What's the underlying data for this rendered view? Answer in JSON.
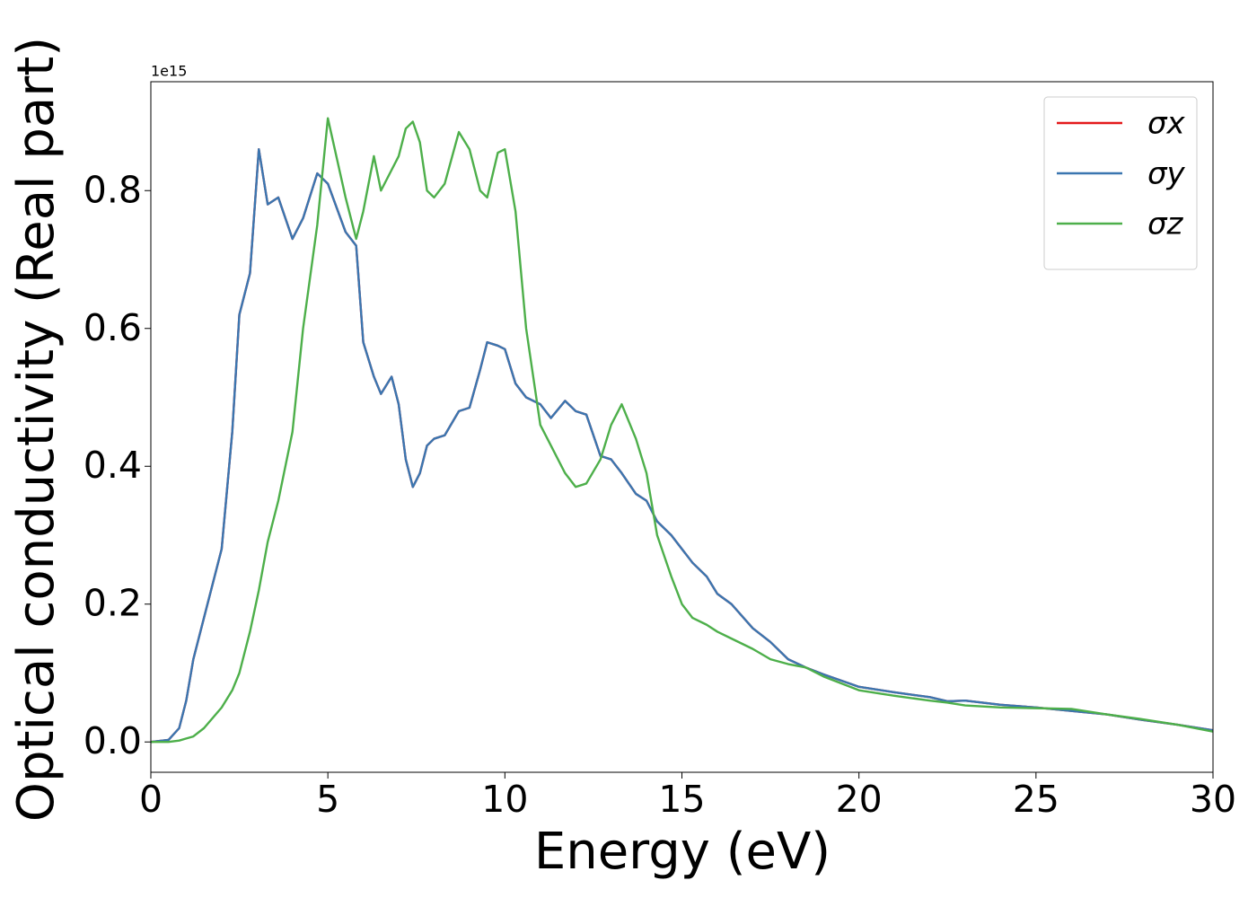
{
  "chart_data": {
    "type": "line",
    "xlabel": "Energy (eV)",
    "ylabel": "Optical conductivity (Real part)",
    "offset_label": "1e15",
    "xlim": [
      0,
      30
    ],
    "xticks": [
      0,
      5,
      10,
      15,
      20,
      25,
      30
    ],
    "ylim": [
      -0.044,
      0.958
    ],
    "yticks": [
      {
        "value": 0,
        "label": "0.0"
      },
      0.2,
      0.4,
      0.6,
      0.8
    ],
    "legend": "upper right",
    "grid": false,
    "x": [
      0,
      0.5,
      0.8,
      1,
      1.2,
      1.5,
      2,
      2.3,
      2.5,
      2.8,
      3.05,
      3.3,
      3.6,
      4,
      4.3,
      4.7,
      5,
      5.5,
      5.8,
      6,
      6.3,
      6.5,
      6.8,
      7,
      7.2,
      7.4,
      7.6,
      7.8,
      8,
      8.3,
      8.7,
      9,
      9.3,
      9.5,
      9.8,
      10,
      10.3,
      10.6,
      11,
      11.3,
      11.7,
      12,
      12.3,
      12.7,
      13,
      13.3,
      13.7,
      14,
      14.3,
      14.7,
      15,
      15.3,
      15.7,
      16,
      16.4,
      17,
      17.5,
      18,
      18.5,
      19,
      20,
      21,
      22,
      22.5,
      23,
      24,
      25,
      26,
      27,
      28,
      29,
      30
    ],
    "series": [
      {
        "name": "σx",
        "color": "#e41a1c",
        "values": [
          0,
          0.003,
          0.02,
          0.06,
          0.12,
          0.18,
          0.28,
          0.45,
          0.62,
          0.68,
          0.86,
          0.78,
          0.79,
          0.73,
          0.76,
          0.825,
          0.81,
          0.74,
          0.72,
          0.58,
          0.53,
          0.505,
          0.53,
          0.49,
          0.41,
          0.37,
          0.39,
          0.43,
          0.44,
          0.445,
          0.48,
          0.485,
          0.54,
          0.58,
          0.575,
          0.57,
          0.52,
          0.5,
          0.49,
          0.47,
          0.495,
          0.48,
          0.475,
          0.415,
          0.41,
          0.39,
          0.36,
          0.35,
          0.32,
          0.3,
          0.28,
          0.26,
          0.24,
          0.215,
          0.2,
          0.165,
          0.145,
          0.12,
          0.108,
          0.098,
          0.08,
          0.072,
          0.065,
          0.059,
          0.06,
          0.054,
          0.05,
          0.045,
          0.04,
          0.032,
          0.025,
          0.017
        ]
      },
      {
        "name": "σy",
        "color": "#3a76b0",
        "values": [
          0,
          0.003,
          0.02,
          0.06,
          0.12,
          0.18,
          0.28,
          0.45,
          0.62,
          0.68,
          0.86,
          0.78,
          0.79,
          0.73,
          0.76,
          0.825,
          0.81,
          0.74,
          0.72,
          0.58,
          0.53,
          0.505,
          0.53,
          0.49,
          0.41,
          0.37,
          0.39,
          0.43,
          0.44,
          0.445,
          0.48,
          0.485,
          0.54,
          0.58,
          0.575,
          0.57,
          0.52,
          0.5,
          0.49,
          0.47,
          0.495,
          0.48,
          0.475,
          0.415,
          0.41,
          0.39,
          0.36,
          0.35,
          0.32,
          0.3,
          0.28,
          0.26,
          0.24,
          0.215,
          0.2,
          0.165,
          0.145,
          0.12,
          0.108,
          0.098,
          0.08,
          0.072,
          0.065,
          0.059,
          0.06,
          0.054,
          0.05,
          0.045,
          0.04,
          0.032,
          0.025,
          0.017
        ]
      },
      {
        "name": "σz",
        "color": "#4daf4a",
        "values": [
          0,
          0,
          0.002,
          0.005,
          0.008,
          0.02,
          0.05,
          0.075,
          0.1,
          0.16,
          0.22,
          0.29,
          0.35,
          0.45,
          0.6,
          0.75,
          0.905,
          0.79,
          0.73,
          0.77,
          0.85,
          0.8,
          0.83,
          0.85,
          0.89,
          0.9,
          0.87,
          0.8,
          0.79,
          0.81,
          0.885,
          0.86,
          0.8,
          0.79,
          0.855,
          0.86,
          0.77,
          0.6,
          0.46,
          0.43,
          0.39,
          0.37,
          0.375,
          0.41,
          0.46,
          0.49,
          0.44,
          0.39,
          0.3,
          0.24,
          0.2,
          0.18,
          0.17,
          0.16,
          0.15,
          0.135,
          0.12,
          0.113,
          0.108,
          0.095,
          0.075,
          0.067,
          0.06,
          0.057,
          0.053,
          0.05,
          0.049,
          0.048,
          0.04,
          0.033,
          0.025,
          0.015
        ]
      }
    ]
  }
}
